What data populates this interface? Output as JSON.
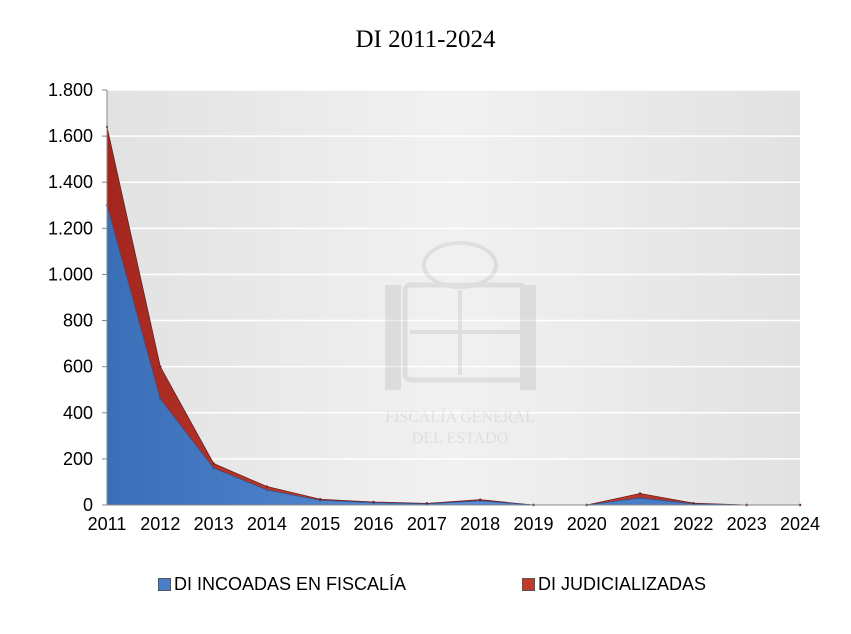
{
  "chart_data": {
    "type": "area",
    "stacked": true,
    "title": "DI 2011-2024",
    "xlabel": "",
    "ylabel": "",
    "categories": [
      "2011",
      "2012",
      "2013",
      "2014",
      "2015",
      "2016",
      "2017",
      "2018",
      "2019",
      "2020",
      "2021",
      "2022",
      "2023",
      "2024"
    ],
    "ylim": [
      0,
      1800
    ],
    "yticks": [
      0,
      200,
      400,
      600,
      800,
      1000,
      1200,
      1400,
      1600,
      1800
    ],
    "ytick_labels": [
      "0",
      "200",
      "400",
      "600",
      "800",
      "1.000",
      "1.200",
      "1.400",
      "1.600",
      "1.800"
    ],
    "grid": true,
    "legend_position": "bottom",
    "series": [
      {
        "name": "DI INCOADAS EN FISCALÍA",
        "color": "#4a7ec6",
        "values": [
          1300,
          460,
          160,
          65,
          20,
          10,
          5,
          18,
          0,
          0,
          30,
          5,
          0,
          0
        ]
      },
      {
        "name": "DI JUDICIALIZADAS",
        "color": "#c0392b",
        "values": [
          340,
          140,
          20,
          15,
          5,
          3,
          2,
          5,
          0,
          0,
          20,
          3,
          0,
          0
        ]
      }
    ]
  },
  "watermark": {
    "line1": "FISCALÍA GENERAL",
    "line2": "DEL ESTADO"
  }
}
